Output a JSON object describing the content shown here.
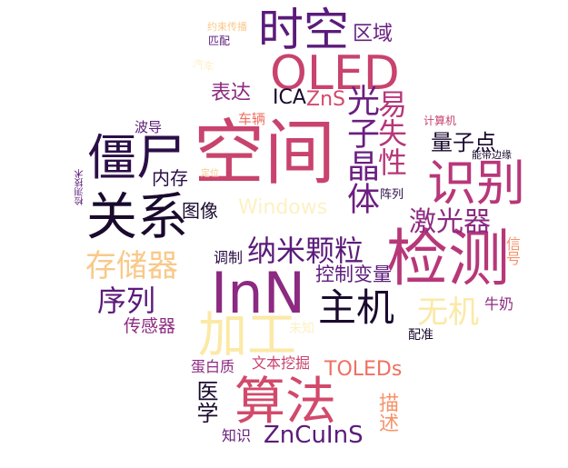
{
  "words": [
    {
      "text": "空间",
      "color": "#c8436e"
    },
    {
      "text": "InN",
      "color": "#8c2a81"
    },
    {
      "text": "OLED",
      "color": "#c8436e"
    },
    {
      "text": "检测",
      "color": "#b73779"
    },
    {
      "text": "时空",
      "color": "#5b1b7a"
    },
    {
      "text": "僵尸",
      "color": "#2b0e47"
    },
    {
      "text": "关系",
      "color": "#1a0a2e"
    },
    {
      "text": "识别",
      "color": "#b73779"
    },
    {
      "text": "算法",
      "color": "#d24a6b"
    },
    {
      "text": "加工",
      "color": "#fbe9a6"
    },
    {
      "text": "主机",
      "color": "#1a0a2e"
    },
    {
      "text": "光子晶体",
      "color": "#6b1f80"
    },
    {
      "text": "纳米颗粒",
      "color": "#5b1b7a"
    },
    {
      "text": "存储器",
      "color": "#f9c98a"
    },
    {
      "text": "序列",
      "color": "#5b1b7a"
    },
    {
      "text": "激光器",
      "color": "#8c2a81"
    },
    {
      "text": "易失性",
      "color": "#b73779"
    },
    {
      "text": "无机",
      "color": "#fbe9a6"
    },
    {
      "text": "Windows",
      "color": "#fdf1c3"
    },
    {
      "text": "ZnCuInS",
      "color": "#5b1b7a"
    },
    {
      "text": "TOLEDs",
      "color": "#f06f62"
    },
    {
      "text": "量子点",
      "color": "#1a0a2e"
    },
    {
      "text": "控制变量",
      "color": "#5b1b7a"
    },
    {
      "text": "医学",
      "color": "#1a0a2e"
    },
    {
      "text": "ZnS",
      "color": "#d24a6b"
    },
    {
      "text": "ICA",
      "color": "#1a0a2e"
    },
    {
      "text": "表达",
      "color": "#8c2a81"
    },
    {
      "text": "区域",
      "color": "#6b1f80"
    },
    {
      "text": "描述",
      "color": "#f6926a"
    },
    {
      "text": "内存",
      "color": "#2b0e47"
    },
    {
      "text": "图像",
      "color": "#1a0a2e"
    },
    {
      "text": "传感器",
      "color": "#8c2a81"
    },
    {
      "text": "调制",
      "color": "#2b0e47"
    },
    {
      "text": "蛋白质",
      "color": "#8c2a81"
    },
    {
      "text": "文本挖掘",
      "color": "#c8436e"
    },
    {
      "text": "知识",
      "color": "#6b1f80"
    },
    {
      "text": "信号",
      "color": "#f6926a"
    },
    {
      "text": "牛奶",
      "color": "#8c2a81"
    },
    {
      "text": "配准",
      "color": "#1a0a2e"
    },
    {
      "text": "未知",
      "color": "#fdf1c3"
    },
    {
      "text": "车辆",
      "color": "#f06f62"
    },
    {
      "text": "波导",
      "color": "#5b1b7a"
    },
    {
      "text": "阵列",
      "color": "#2b0e47"
    },
    {
      "text": "计算机",
      "color": "#c8436e"
    },
    {
      "text": "能带边缘",
      "color": "#1a0a2e"
    },
    {
      "text": "约束传播",
      "color": "#f9c98a"
    },
    {
      "text": "匹配",
      "color": "#5b1b7a"
    },
    {
      "text": "汽车",
      "color": "#fdf1c3"
    },
    {
      "text": "定位",
      "color": "#f9c98a"
    },
    {
      "text": "检测技术",
      "color": "#5b1b7a"
    }
  ]
}
